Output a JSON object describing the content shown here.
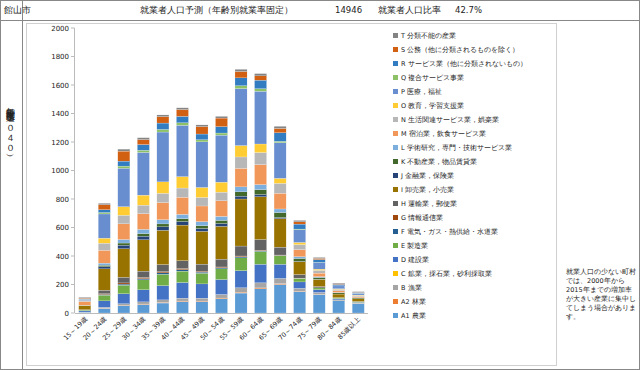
{
  "chart_data": {
    "type": "bar",
    "stacked": true,
    "grid": false,
    "legend": "right",
    "title": "就業者人口予測（年齢別就業率固定）",
    "y_label": "年齢別産業構造（２０４０）",
    "annotations": [
      "館山市",
      "14946",
      "就業者人口比率",
      "42.7%",
      "就業人口の少ない町村では、2000年から2015年までの増加率が大きい産業に集中してしまう場合があります。"
    ],
    "categories": [
      "15～19歳",
      "20～24歳",
      "25～29歳",
      "30～34歳",
      "35～39歳",
      "40～44歳",
      "45～49歳",
      "50～54歳",
      "55～59歳",
      "60～64歳",
      "65～69歳",
      "70～74歳",
      "75～79歳",
      "80～84歳",
      "85歳以上"
    ],
    "ylim": [
      0,
      2000
    ],
    "yticks": [
      0,
      200,
      400,
      600,
      800,
      1000,
      1200,
      1400,
      1600,
      1800,
      2000
    ],
    "series": [
      {
        "name": "A1 農業",
        "color": "#5b9bd5",
        "values": [
          5,
          30,
          50,
          60,
          70,
          80,
          80,
          100,
          140,
          170,
          200,
          150,
          130,
          85,
          65
        ]
      },
      {
        "name": "A2 林業",
        "color": "#ed7d31",
        "values": [
          0,
          2,
          3,
          3,
          4,
          4,
          4,
          5,
          6,
          6,
          6,
          3,
          2,
          1,
          1
        ]
      },
      {
        "name": "B 漁業",
        "color": "#a5a5a5",
        "values": [
          2,
          8,
          12,
          15,
          18,
          20,
          20,
          25,
          30,
          35,
          35,
          20,
          12,
          6,
          4
        ]
      },
      {
        "name": "C 鉱業，採石業，砂利採取業",
        "color": "#ffc000",
        "values": [
          0,
          0,
          0,
          0,
          0,
          0,
          0,
          0,
          1,
          1,
          1,
          0,
          0,
          0,
          0
        ]
      },
      {
        "name": "D 建設業",
        "color": "#4472c4",
        "values": [
          8,
          45,
          70,
          85,
          100,
          110,
          100,
          105,
          120,
          130,
          100,
          45,
          20,
          8,
          5
        ]
      },
      {
        "name": "E 製造業",
        "color": "#70ad47",
        "values": [
          5,
          40,
          60,
          70,
          80,
          80,
          75,
          75,
          90,
          90,
          60,
          25,
          12,
          5,
          4
        ]
      },
      {
        "name": "F 電気・ガス・熱供給・水道業",
        "color": "#255e91",
        "values": [
          0,
          5,
          8,
          8,
          10,
          10,
          8,
          8,
          8,
          5,
          3,
          1,
          0,
          0,
          0
        ]
      },
      {
        "name": "G 情報通信業",
        "color": "#9e480e",
        "values": [
          0,
          5,
          8,
          8,
          8,
          8,
          6,
          5,
          5,
          4,
          2,
          1,
          0,
          0,
          0
        ]
      },
      {
        "name": "H 運輸業，郵便業",
        "color": "#636363",
        "values": [
          3,
          25,
          40,
          45,
          50,
          55,
          50,
          55,
          70,
          75,
          55,
          25,
          10,
          3,
          2
        ]
      },
      {
        "name": "I 卸売業，小売業",
        "color": "#997300",
        "values": [
          30,
          150,
          200,
          220,
          240,
          250,
          230,
          230,
          330,
          300,
          200,
          90,
          50,
          25,
          18
        ]
      },
      {
        "name": "J 金融業，保険業",
        "color": "#264478",
        "values": [
          0,
          15,
          25,
          25,
          25,
          25,
          20,
          20,
          20,
          15,
          8,
          3,
          1,
          0,
          0
        ]
      },
      {
        "name": "K 不動産業，物品賃貸業",
        "color": "#43682b",
        "values": [
          1,
          10,
          15,
          18,
          20,
          20,
          20,
          22,
          30,
          35,
          35,
          20,
          12,
          8,
          6
        ]
      },
      {
        "name": "L 学術研究，専門・技術サービス業",
        "color": "#7cafdd",
        "values": [
          1,
          15,
          25,
          30,
          30,
          30,
          28,
          28,
          35,
          35,
          25,
          12,
          6,
          3,
          2
        ]
      },
      {
        "name": "M 宿泊業，飲食サービス業",
        "color": "#f1975a",
        "values": [
          25,
          90,
          110,
          110,
          120,
          120,
          110,
          110,
          130,
          140,
          110,
          50,
          25,
          12,
          8
        ]
      },
      {
        "name": "N 生活関連サービス業，娯楽業",
        "color": "#b7b7b7",
        "values": [
          5,
          50,
          60,
          60,
          65,
          65,
          60,
          60,
          80,
          85,
          70,
          35,
          20,
          10,
          8
        ]
      },
      {
        "name": "O 教育，学習支援業",
        "color": "#ffcd33",
        "values": [
          2,
          35,
          60,
          70,
          80,
          80,
          70,
          70,
          80,
          60,
          35,
          15,
          8,
          4,
          3
        ]
      },
      {
        "name": "P 医療，福祉",
        "color": "#698ed0",
        "values": [
          10,
          170,
          270,
          300,
          350,
          360,
          320,
          330,
          400,
          370,
          250,
          90,
          45,
          20,
          12
        ]
      },
      {
        "name": "Q 複合サービス事業",
        "color": "#8cc168",
        "values": [
          1,
          10,
          15,
          15,
          18,
          18,
          15,
          15,
          20,
          18,
          10,
          4,
          2,
          1,
          1
        ]
      },
      {
        "name": "R サービス業（他に分類されないもの）",
        "color": "#327dc2",
        "values": [
          3,
          20,
          35,
          40,
          45,
          45,
          40,
          45,
          55,
          60,
          60,
          35,
          20,
          10,
          6
        ]
      },
      {
        "name": "S 公務（他に分類されるものを除く）",
        "color": "#d26012",
        "values": [
          4,
          35,
          70,
          35,
          45,
          48,
          52,
          60,
          45,
          30,
          30,
          16,
          8,
          4,
          2
        ]
      },
      {
        "name": "T 分類不能の産業",
        "color": "#848484",
        "values": [
          5,
          10,
          14,
          13,
          12,
          12,
          12,
          12,
          15,
          16,
          15,
          10,
          7,
          5,
          3
        ]
      }
    ]
  }
}
